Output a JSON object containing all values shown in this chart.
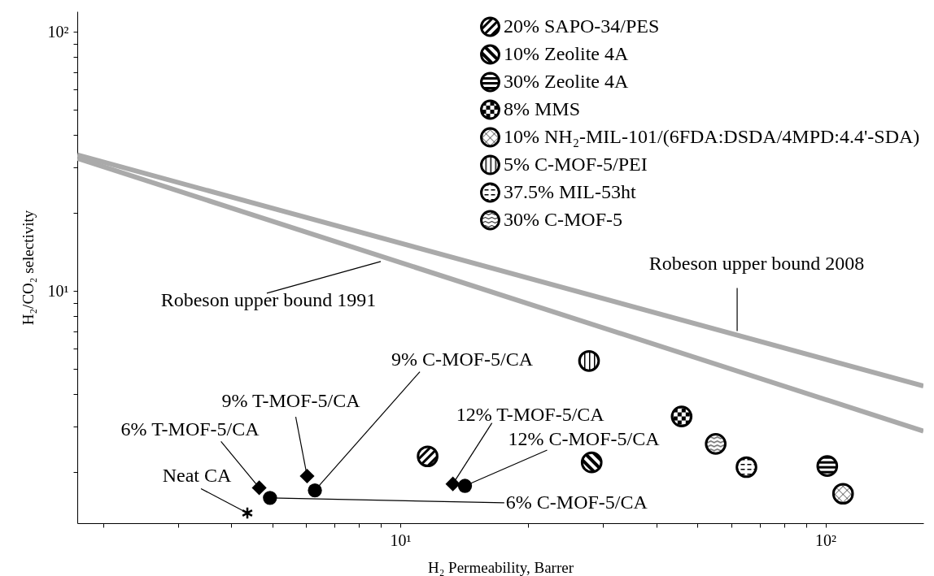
{
  "chart_data": {
    "type": "scatter",
    "xlabel": "H₂ Permeability,  Barrer",
    "ylabel": "H₂/CO₂ selectivity",
    "log": "xy",
    "grid": false,
    "legend": "top right",
    "marker": "circle",
    "xlim": [
      1.74,
      170
    ],
    "ylim": [
      1.27,
      120
    ],
    "xticks": [
      {
        "value": 2,
        "label": null
      },
      {
        "value": 3,
        "label": null
      },
      {
        "value": 4,
        "label": null
      },
      {
        "value": 5,
        "label": null
      },
      {
        "value": 6,
        "label": null
      },
      {
        "value": 7,
        "label": null
      },
      {
        "value": 8,
        "label": null
      },
      {
        "value": 9,
        "label": null
      },
      {
        "value": 10,
        "label": "10¹"
      },
      {
        "value": 20,
        "label": null
      },
      {
        "value": 30,
        "label": null
      },
      {
        "value": 40,
        "label": null
      },
      {
        "value": 50,
        "label": null
      },
      {
        "value": 60,
        "label": null
      },
      {
        "value": 70,
        "label": null
      },
      {
        "value": 80,
        "label": null
      },
      {
        "value": 90,
        "label": null
      },
      {
        "value": 100,
        "label": "10²"
      }
    ],
    "yticks": [
      {
        "value": 2,
        "label": null
      },
      {
        "value": 3,
        "label": null
      },
      {
        "value": 4,
        "label": null
      },
      {
        "value": 5,
        "label": null
      },
      {
        "value": 6,
        "label": null
      },
      {
        "value": 7,
        "label": null
      },
      {
        "value": 8,
        "label": null
      },
      {
        "value": 9,
        "label": null
      },
      {
        "value": 10,
        "label": "10¹"
      },
      {
        "value": 20,
        "label": null
      },
      {
        "value": 30,
        "label": null
      },
      {
        "value": 40,
        "label": null
      },
      {
        "value": 50,
        "label": null
      },
      {
        "value": 60,
        "label": null
      },
      {
        "value": 70,
        "label": null
      },
      {
        "value": 80,
        "label": null
      },
      {
        "value": 90,
        "label": null
      },
      {
        "value": 100,
        "label": "10²"
      }
    ],
    "series": [
      {
        "type": "line",
        "marker": "none",
        "color": "#aaaaaa",
        "x": [
          1.74,
          170
        ],
        "values": [
          32.5,
          2.88
        ]
      },
      {
        "type": "line",
        "marker": "none",
        "color": "#aaaaaa",
        "x": [
          1.74,
          170
        ],
        "values": [
          33.5,
          4.3
        ]
      },
      {
        "name": "20% SAPO-34/PES",
        "color": "#000000",
        "x": [
          11.6
        ],
        "values": [
          2.3
        ]
      },
      {
        "name": "10% Zeolite 4A",
        "color": "#000000",
        "x": [
          28.2
        ],
        "values": [
          2.18
        ]
      },
      {
        "name": "30% Zeolite 4A",
        "color": "#000000",
        "x": [
          101
        ],
        "values": [
          2.11
        ]
      },
      {
        "name": "8% MMS",
        "color": "#000000",
        "x": [
          45.9
        ],
        "values": [
          3.28
        ]
      },
      {
        "name": "10% NH₂-MIL-101/(6FDA:DSDA/4MPD:4.4'-SDA)",
        "color": "#000000",
        "x": [
          110
        ],
        "values": [
          1.65
        ]
      },
      {
        "name": "5% C-MOF-5/PEI",
        "color": "#000000",
        "x": [
          27.8
        ],
        "values": [
          5.37
        ]
      },
      {
        "name": "37.5% MIL-53ht",
        "color": "#000000",
        "x": [
          65.2
        ],
        "values": [
          2.09
        ]
      },
      {
        "name": "30% C-MOF-5",
        "color": "#000000",
        "x": [
          55.2
        ],
        "values": [
          2.57
        ]
      },
      {
        "color": "#000000",
        "marker": "cross",
        "x": [
          4.37
        ],
        "values": [
          1.39
        ]
      },
      {
        "color": "#000000",
        "marker": "diamond",
        "x": [
          4.66,
          6.04,
          13.3
        ],
        "values": [
          1.74,
          1.93,
          1.8
        ]
      },
      {
        "color": "#000000",
        "marker": "circle",
        "x": [
          4.94,
          6.3,
          14.2
        ],
        "values": [
          1.59,
          1.7,
          1.77
        ]
      }
    ],
    "annotations": [
      {
        "text": "Robeson upper bound 1991",
        "x": 9,
        "y": 13
      },
      {
        "text": "Robeson upper bound 2008",
        "x": 62,
        "y": 7
      },
      {
        "text": "Neat CA",
        "x": 4.37,
        "y": 1.39
      },
      {
        "text": "6% T-MOF-5/CA",
        "x": 4.66,
        "y": 1.74
      },
      {
        "text": "6% C-MOF-5/CA",
        "x": 4.94,
        "y": 1.59
      },
      {
        "text": "9% T-MOF-5/CA",
        "x": 6.04,
        "y": 1.93
      },
      {
        "text": "9% C-MOF-5/CA",
        "x": 6.3,
        "y": 1.7
      },
      {
        "text": "12% T-MOF-5/CA",
        "x": 13.3,
        "y": 1.8
      },
      {
        "text": "12% C-MOF-5/CA",
        "x": 14.2,
        "y": 1.77
      }
    ]
  }
}
